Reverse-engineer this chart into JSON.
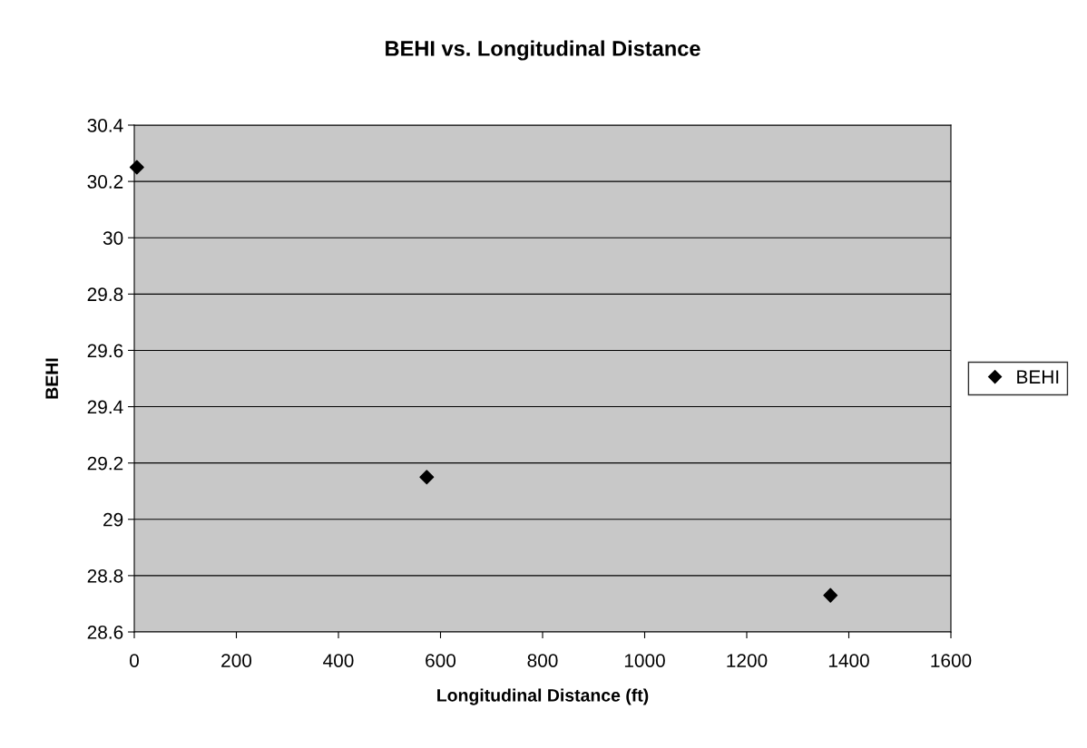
{
  "chart_data": {
    "type": "scatter",
    "title": "BEHI vs. Longitudinal Distance",
    "xlabel": "Longitudinal Distance (ft)",
    "ylabel": "BEHI",
    "x": [
      5,
      573,
      1364
    ],
    "series": [
      {
        "name": "BEHI",
        "color": "#000000",
        "values": [
          30.25,
          29.15,
          28.73
        ]
      }
    ],
    "xlim": [
      0,
      1600
    ],
    "xticks": [
      0,
      200,
      400,
      600,
      800,
      1000,
      1200,
      1400,
      1600
    ],
    "ylim": [
      28.6,
      30.4
    ],
    "yticks": [
      {
        "value": 28.6,
        "label": "28.6"
      },
      {
        "value": 28.8,
        "label": "28.8"
      },
      29,
      {
        "value": 29.2,
        "label": "29.2"
      },
      {
        "value": 29.4,
        "label": "29.4"
      },
      {
        "value": 29.6,
        "label": "29.6"
      },
      {
        "value": 29.8,
        "label": "29.8"
      },
      30,
      {
        "value": 30.2,
        "label": "30.2"
      },
      {
        "value": 30.4,
        "label": "30.4"
      }
    ],
    "grid": "y",
    "legend": "right",
    "marker": "diamond"
  }
}
